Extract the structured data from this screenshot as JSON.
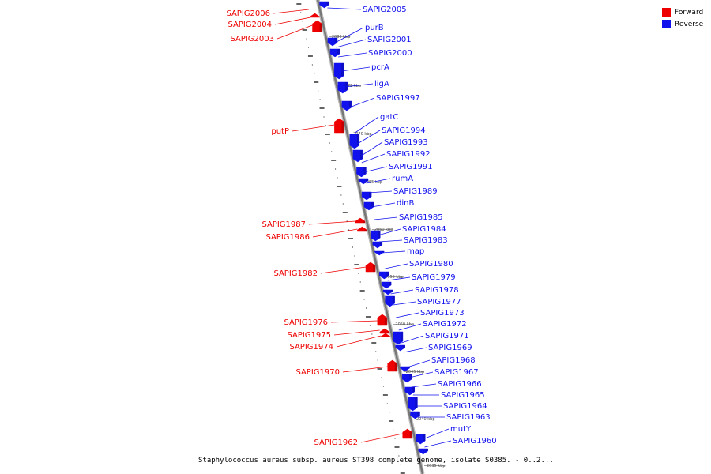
{
  "legend": {
    "forward_label": "Forward",
    "reverse_label": "Reverse",
    "forward_color": "#ee0000",
    "reverse_color": "#1111ee"
  },
  "caption": "Staphylococcus aureus subsp. aureus ST398 complete genome, isolate S0385. - 0..2...",
  "scale_ticks": [
    "2080 kbp",
    "2075 kbp",
    "2070 kbp",
    "2065 kbp",
    "2060 kbp",
    "2055 kbp",
    "2050 kbp",
    "2045 kbp",
    "2040 kbp",
    "2035 kbp"
  ],
  "forward_genes": [
    "SAPIG2006",
    "SAPIG2004",
    "SAPIG2003",
    "putP",
    "SAPIG1987",
    "SAPIG1986",
    "SAPIG1982",
    "SAPIG1976",
    "SAPIG1975",
    "SAPIG1974",
    "SAPIG1970",
    "SAPIG1962"
  ],
  "reverse_genes": [
    "SAPIG2005",
    "purB",
    "SAPIG2001",
    "SAPIG2000",
    "pcrA",
    "ligA",
    "SAPIG1997",
    "gatC",
    "SAPIG1994",
    "SAPIG1993",
    "SAPIG1992",
    "SAPIG1991",
    "rumA",
    "SAPIG1989",
    "dinB",
    "SAPIG1985",
    "SAPIG1984",
    "SAPIG1983",
    "map",
    "SAPIG1980",
    "SAPIG1979",
    "SAPIG1978",
    "SAPIG1977",
    "SAPIG1973",
    "SAPIG1972",
    "SAPIG1971",
    "SAPIG1969",
    "SAPIG1968",
    "SAPIG1967",
    "SAPIG1966",
    "SAPIG1965",
    "SAPIG1964",
    "SAPIG1963",
    "mutY",
    "SAPIG1960"
  ]
}
